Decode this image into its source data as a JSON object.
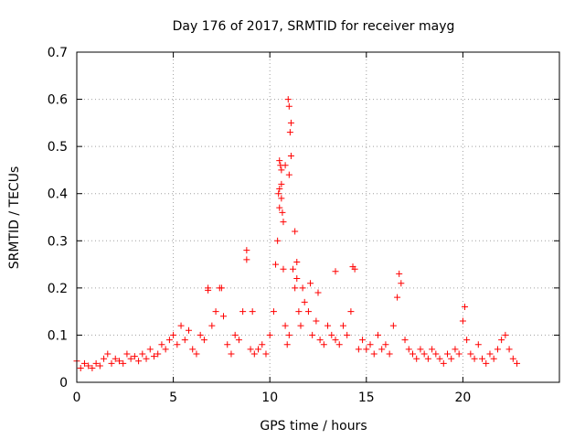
{
  "chart_data": {
    "type": "scatter",
    "title": "Day 176 of 2017, SRMTID for receiver mayg",
    "xlabel": "GPS time / hours",
    "ylabel": "SRMTID / TECUs",
    "xlim": [
      0,
      25
    ],
    "ylim": [
      0,
      0.7
    ],
    "x_ticks": [
      0,
      5,
      10,
      15,
      20
    ],
    "x_tick_labels": [
      "0",
      "5",
      "10",
      "15",
      "20"
    ],
    "y_ticks": [
      0,
      0.1,
      0.2,
      0.3,
      0.4,
      0.5,
      0.6,
      0.7
    ],
    "y_tick_labels": [
      "0",
      "0.1",
      "0.2",
      "0.3",
      "0.4",
      "0.5",
      "0.6",
      "0.7"
    ],
    "grid": true,
    "marker": "+",
    "marker_color": "#ff0000",
    "series": [
      {
        "name": "SRMTID",
        "x": [
          0.0,
          0.2,
          0.4,
          0.6,
          0.8,
          1.0,
          1.2,
          1.4,
          1.6,
          1.8,
          2.0,
          2.2,
          2.4,
          2.6,
          2.8,
          3.0,
          3.2,
          3.4,
          3.6,
          3.8,
          4.0,
          4.2,
          4.4,
          4.6,
          4.8,
          5.0,
          5.2,
          5.4,
          5.6,
          5.8,
          6.0,
          6.2,
          6.4,
          6.6,
          6.8,
          7.0,
          7.2,
          7.4,
          7.6,
          7.8,
          8.0,
          8.2,
          8.4,
          8.6,
          8.8,
          9.0,
          9.2,
          9.4,
          9.6,
          9.8,
          10.0,
          10.2,
          10.3,
          10.4,
          10.5,
          10.6,
          10.7,
          10.8,
          10.9,
          11.0,
          11.1,
          11.2,
          11.3,
          11.4,
          11.5,
          11.6,
          11.8,
          12.0,
          12.2,
          12.4,
          12.6,
          12.8,
          13.0,
          13.2,
          13.4,
          13.6,
          13.8,
          14.0,
          14.2,
          14.4,
          14.6,
          14.8,
          15.0,
          15.2,
          15.4,
          15.6,
          15.8,
          16.0,
          16.2,
          16.4,
          16.6,
          16.8,
          17.0,
          17.2,
          17.4,
          17.6,
          17.8,
          18.0,
          18.2,
          18.4,
          18.6,
          18.8,
          19.0,
          19.2,
          19.4,
          19.6,
          19.8,
          20.0,
          20.2,
          20.4,
          20.6,
          20.8,
          21.0,
          21.2,
          21.4,
          21.6,
          21.8,
          22.0,
          22.2,
          22.4,
          22.6,
          22.8,
          10.45,
          10.5,
          10.55,
          10.6,
          10.65,
          10.7,
          10.95,
          11.0,
          11.05,
          10.5,
          11.0,
          6.8,
          7.5,
          8.8,
          9.1,
          11.4,
          13.4,
          14.3,
          16.7,
          20.1,
          10.6,
          10.8,
          11.1,
          11.3,
          11.7,
          12.1,
          12.5
        ],
        "y": [
          0.045,
          0.03,
          0.04,
          0.035,
          0.03,
          0.04,
          0.035,
          0.05,
          0.06,
          0.04,
          0.05,
          0.045,
          0.04,
          0.06,
          0.05,
          0.055,
          0.045,
          0.06,
          0.05,
          0.07,
          0.055,
          0.06,
          0.08,
          0.07,
          0.09,
          0.1,
          0.08,
          0.12,
          0.09,
          0.11,
          0.07,
          0.06,
          0.1,
          0.09,
          0.2,
          0.12,
          0.15,
          0.2,
          0.14,
          0.08,
          0.06,
          0.1,
          0.09,
          0.15,
          0.26,
          0.07,
          0.06,
          0.07,
          0.08,
          0.06,
          0.1,
          0.15,
          0.25,
          0.3,
          0.37,
          0.45,
          0.24,
          0.12,
          0.08,
          0.1,
          0.55,
          0.24,
          0.2,
          0.22,
          0.15,
          0.12,
          0.17,
          0.15,
          0.1,
          0.13,
          0.09,
          0.08,
          0.12,
          0.1,
          0.09,
          0.08,
          0.12,
          0.1,
          0.15,
          0.24,
          0.07,
          0.09,
          0.07,
          0.08,
          0.06,
          0.1,
          0.07,
          0.08,
          0.06,
          0.12,
          0.18,
          0.21,
          0.09,
          0.07,
          0.06,
          0.05,
          0.07,
          0.06,
          0.05,
          0.07,
          0.06,
          0.05,
          0.04,
          0.06,
          0.05,
          0.07,
          0.06,
          0.13,
          0.09,
          0.06,
          0.05,
          0.08,
          0.05,
          0.04,
          0.06,
          0.05,
          0.07,
          0.09,
          0.1,
          0.07,
          0.05,
          0.04,
          0.4,
          0.47,
          0.46,
          0.42,
          0.36,
          0.34,
          0.6,
          0.585,
          0.53,
          0.41,
          0.44,
          0.195,
          0.2,
          0.28,
          0.15,
          0.255,
          0.235,
          0.245,
          0.23,
          0.16,
          0.39,
          0.46,
          0.48,
          0.32,
          0.2,
          0.21,
          0.19
        ]
      }
    ]
  }
}
